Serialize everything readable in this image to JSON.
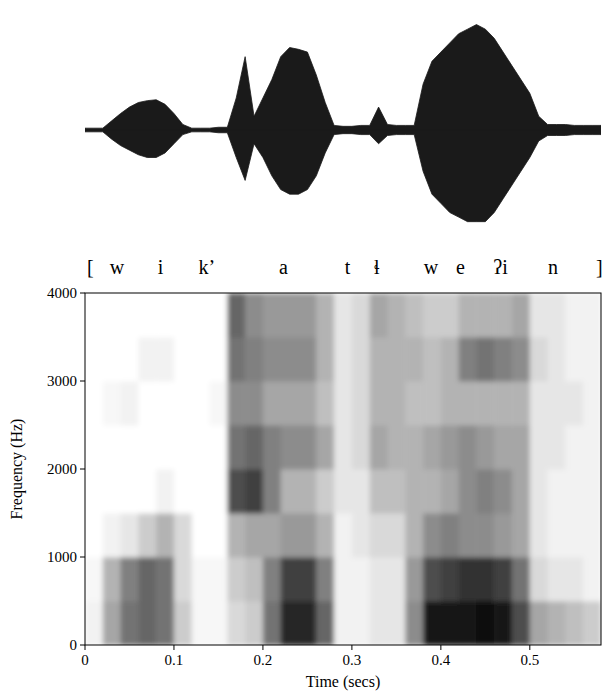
{
  "chart_data": [
    {
      "type": "area",
      "tick_labels": false,
      "xlim": [
        0,
        0.58
      ],
      "ylim": [
        -1.2,
        1.2
      ],
      "color": "#1a1a1a",
      "x": [
        0,
        0.01,
        0.02,
        0.03,
        0.04,
        0.05,
        0.06,
        0.07,
        0.08,
        0.09,
        0.1,
        0.11,
        0.12,
        0.13,
        0.14,
        0.15,
        0.16,
        0.17,
        0.18,
        0.19,
        0.2,
        0.21,
        0.22,
        0.23,
        0.24,
        0.25,
        0.26,
        0.27,
        0.28,
        0.29,
        0.3,
        0.31,
        0.32,
        0.33,
        0.34,
        0.35,
        0.36,
        0.37,
        0.38,
        0.39,
        0.4,
        0.41,
        0.42,
        0.43,
        0.44,
        0.45,
        0.46,
        0.47,
        0.48,
        0.49,
        0.5,
        0.51,
        0.52,
        0.53,
        0.54,
        0.55,
        0.56,
        0.57,
        0.58
      ],
      "series": [
        {
          "values": [
            0.02,
            0.02,
            0.02,
            0.1,
            0.18,
            0.25,
            0.3,
            0.32,
            0.33,
            0.28,
            0.18,
            0.06,
            0.02,
            0.02,
            0.02,
            0.03,
            0.03,
            0.35,
            0.8,
            0.15,
            0.35,
            0.55,
            0.8,
            0.9,
            0.88,
            0.85,
            0.6,
            0.3,
            0.05,
            0.04,
            0.04,
            0.05,
            0.05,
            0.25,
            0.06,
            0.05,
            0.05,
            0.05,
            0.5,
            0.75,
            0.85,
            0.95,
            1.05,
            1.1,
            1.15,
            1.1,
            1.0,
            0.85,
            0.7,
            0.55,
            0.4,
            0.15,
            0.06,
            0.06,
            0.06,
            0.05,
            0.05,
            0.05,
            0.05
          ]
        },
        {
          "values": [
            -0.02,
            -0.02,
            -0.02,
            -0.1,
            -0.17,
            -0.22,
            -0.27,
            -0.3,
            -0.3,
            -0.25,
            -0.15,
            -0.05,
            -0.02,
            -0.02,
            -0.02,
            -0.03,
            -0.03,
            -0.3,
            -0.55,
            -0.15,
            -0.3,
            -0.5,
            -0.65,
            -0.7,
            -0.7,
            -0.65,
            -0.5,
            -0.25,
            -0.05,
            -0.04,
            -0.04,
            -0.05,
            -0.05,
            -0.15,
            -0.06,
            -0.05,
            -0.05,
            -0.05,
            -0.45,
            -0.7,
            -0.8,
            -0.9,
            -0.95,
            -1.0,
            -1.0,
            -1.0,
            -0.9,
            -0.75,
            -0.6,
            -0.45,
            -0.3,
            -0.12,
            -0.06,
            -0.06,
            -0.06,
            -0.05,
            -0.05,
            -0.05,
            -0.05
          ]
        }
      ],
      "annotations": [
        {
          "text": "[",
          "x": 0.006
        },
        {
          "text": "w",
          "x": 0.036
        },
        {
          "text": "i",
          "x": 0.085
        },
        {
          "text": "k’",
          "x": 0.137
        },
        {
          "text": "a",
          "x": 0.223
        },
        {
          "text": "t",
          "x": 0.295
        },
        {
          "text": "ɬ",
          "x": 0.328
        },
        {
          "text": "w",
          "x": 0.389
        },
        {
          "text": "e",
          "x": 0.422
        },
        {
          "text": "ʔi",
          "x": 0.467
        },
        {
          "text": "n",
          "x": 0.526
        },
        {
          "text": "]",
          "x": 0.578
        }
      ]
    },
    {
      "type": "heatmap",
      "x_label": "Time (secs)",
      "y_label": "Frequency (Hz)",
      "xlim": [
        0,
        0.58
      ],
      "ylim": [
        0,
        4000
      ],
      "xticks": [
        0,
        0.1,
        0.2,
        0.3,
        0.4,
        0.5
      ],
      "yticks": [
        0,
        1000,
        2000,
        3000,
        4000
      ],
      "x_bins": [
        0,
        0.02,
        0.04,
        0.06,
        0.08,
        0.1,
        0.12,
        0.14,
        0.16,
        0.18,
        0.2,
        0.22,
        0.24,
        0.26,
        0.28,
        0.3,
        0.32,
        0.34,
        0.36,
        0.38,
        0.4,
        0.42,
        0.44,
        0.46,
        0.48,
        0.5,
        0.52,
        0.54,
        0.56,
        0.58
      ],
      "y_bins": [
        0,
        500,
        1000,
        1500,
        2000,
        2500,
        3000,
        3500,
        4000
      ],
      "cells": [
        [
          0.05,
          0.03,
          0,
          0,
          0,
          0,
          0,
          0
        ],
        [
          0.35,
          0.3,
          0.05,
          0,
          0,
          0.03,
          0,
          0
        ],
        [
          0.55,
          0.5,
          0.1,
          0,
          0,
          0.05,
          0,
          0
        ],
        [
          0.6,
          0.6,
          0.2,
          0,
          0,
          0,
          0.05,
          0
        ],
        [
          0.55,
          0.55,
          0.3,
          0.05,
          0,
          0,
          0.05,
          0
        ],
        [
          0.2,
          0.15,
          0.15,
          0,
          0,
          0,
          0,
          0
        ],
        [
          0.03,
          0.03,
          0,
          0,
          0,
          0,
          0,
          0
        ],
        [
          0.03,
          0.03,
          0,
          0,
          0,
          0.03,
          0,
          0
        ],
        [
          0.15,
          0.2,
          0.3,
          0.7,
          0.55,
          0.45,
          0.55,
          0.6
        ],
        [
          0.2,
          0.25,
          0.35,
          0.75,
          0.6,
          0.45,
          0.5,
          0.45
        ],
        [
          0.55,
          0.5,
          0.35,
          0.5,
          0.5,
          0.35,
          0.45,
          0.4
        ],
        [
          0.85,
          0.75,
          0.4,
          0.3,
          0.45,
          0.35,
          0.45,
          0.4
        ],
        [
          0.85,
          0.75,
          0.4,
          0.3,
          0.45,
          0.35,
          0.45,
          0.4
        ],
        [
          0.6,
          0.5,
          0.3,
          0.2,
          0.35,
          0.25,
          0.3,
          0.3
        ],
        [
          0.05,
          0.05,
          0.05,
          0.1,
          0.1,
          0.1,
          0.1,
          0.1
        ],
        [
          0.05,
          0.05,
          0.1,
          0.1,
          0.15,
          0.15,
          0.15,
          0.15
        ],
        [
          0.1,
          0.1,
          0.15,
          0.25,
          0.35,
          0.3,
          0.3,
          0.35
        ],
        [
          0.1,
          0.1,
          0.15,
          0.25,
          0.3,
          0.3,
          0.3,
          0.3
        ],
        [
          0.45,
          0.4,
          0.3,
          0.3,
          0.3,
          0.25,
          0.3,
          0.25
        ],
        [
          0.9,
          0.7,
          0.45,
          0.3,
          0.35,
          0.25,
          0.25,
          0.2
        ],
        [
          0.9,
          0.75,
          0.5,
          0.35,
          0.4,
          0.3,
          0.3,
          0.2
        ],
        [
          0.9,
          0.8,
          0.45,
          0.45,
          0.45,
          0.3,
          0.5,
          0.3
        ],
        [
          0.95,
          0.8,
          0.45,
          0.5,
          0.4,
          0.3,
          0.55,
          0.3
        ],
        [
          0.9,
          0.75,
          0.4,
          0.45,
          0.35,
          0.3,
          0.5,
          0.3
        ],
        [
          0.7,
          0.55,
          0.35,
          0.35,
          0.35,
          0.3,
          0.45,
          0.35
        ],
        [
          0.35,
          0.15,
          0.1,
          0.1,
          0.1,
          0.1,
          0.15,
          0.1
        ],
        [
          0.3,
          0.1,
          0.05,
          0.05,
          0.1,
          0.1,
          0.1,
          0.1
        ],
        [
          0.25,
          0.1,
          0.05,
          0.05,
          0.05,
          0.1,
          0.05,
          0.05
        ],
        [
          0.2,
          0.05,
          0.05,
          0.05,
          0.05,
          0.05,
          0.05,
          0.05
        ]
      ]
    }
  ]
}
